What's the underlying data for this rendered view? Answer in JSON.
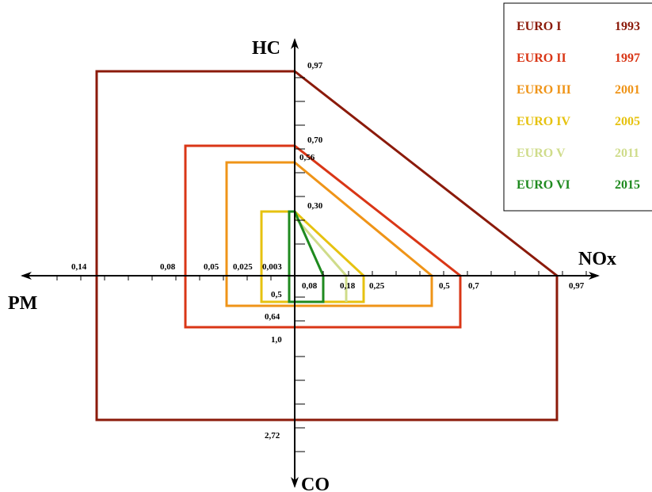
{
  "chart_data": {
    "type": "diagram",
    "axes": {
      "up": "HC",
      "right": "NOx",
      "left": "PM",
      "down": "CO"
    },
    "tick_labels": {
      "hc": [
        "0,97",
        "0,70",
        "0,56",
        "0,30"
      ],
      "nox": [
        "0,08",
        "0,18",
        "0,25",
        "0,5",
        "0,7",
        "0,97"
      ],
      "pm": [
        "0,14",
        "0,08",
        "0,05",
        "0,025",
        "0,003"
      ],
      "co": [
        "0,5",
        "0,64",
        "1,0",
        "2,72"
      ]
    },
    "legend": [
      {
        "name": "EURO I",
        "year": "1993",
        "color": "#8b1a0a"
      },
      {
        "name": "EURO II",
        "year": "1997",
        "color": "#d93616"
      },
      {
        "name": "EURO III",
        "year": "2001",
        "color": "#ef9418"
      },
      {
        "name": "EURO IV",
        "year": "2005",
        "color": "#e6c210"
      },
      {
        "name": "EURO V",
        "year": "2011",
        "color": "#cfdc8a"
      },
      {
        "name": "EURO VI",
        "year": "2015",
        "color": "#1f8a1f"
      }
    ]
  }
}
